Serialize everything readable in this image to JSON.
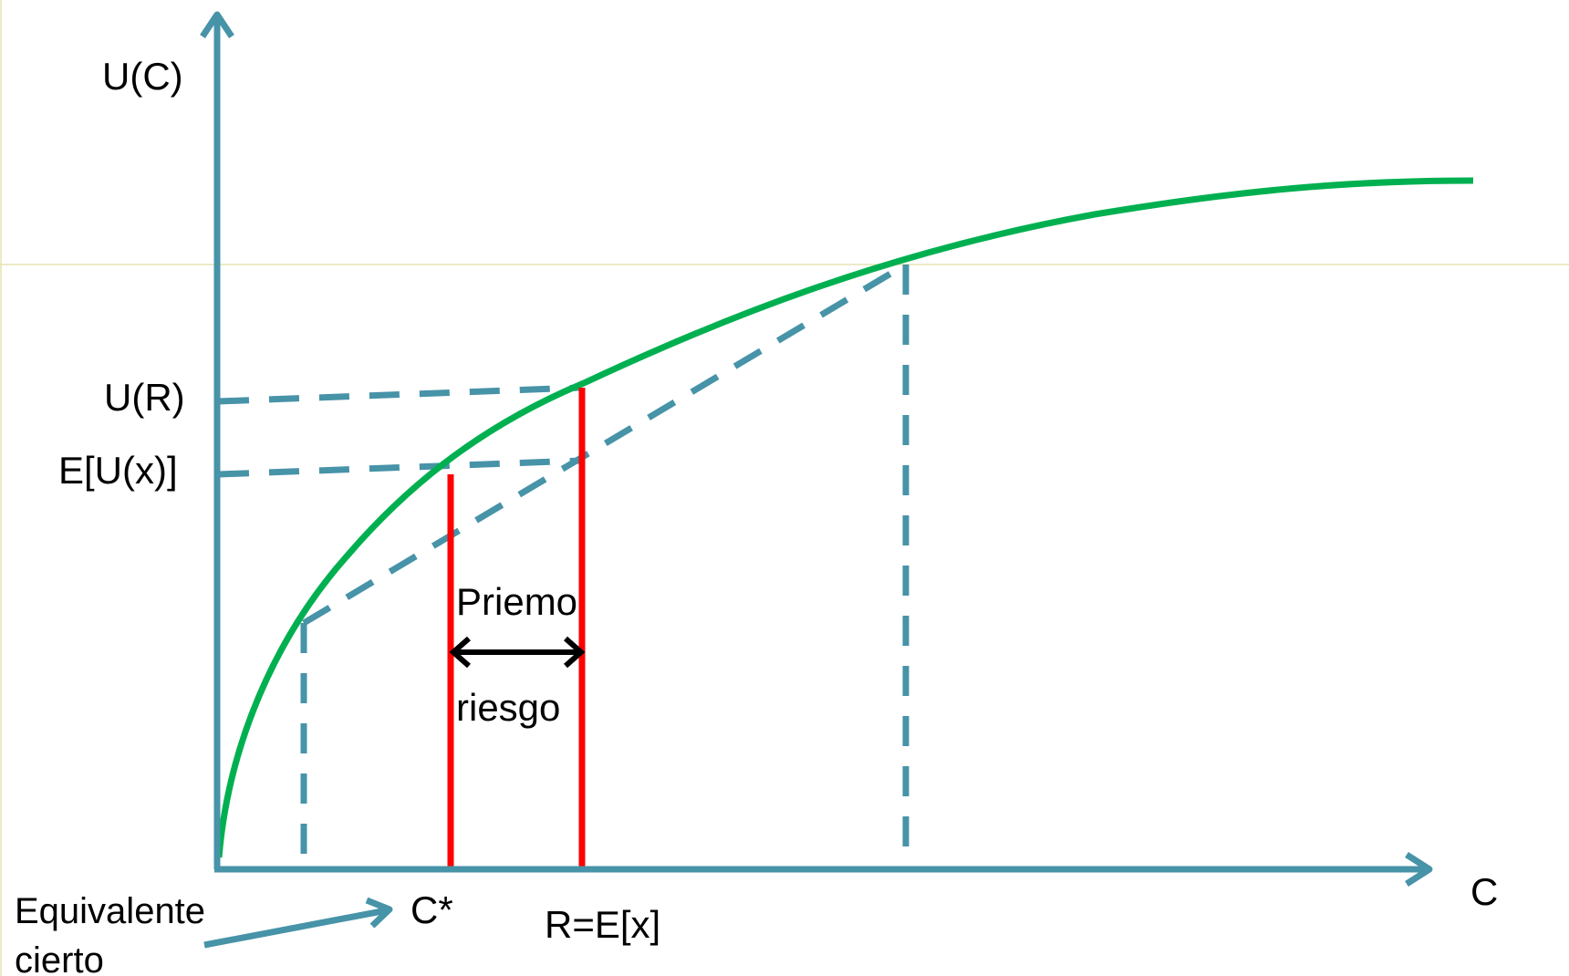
{
  "colors": {
    "axis": "#4793a8",
    "curve": "#00b050",
    "premium_lines": "#ff0000",
    "arrow": "#000000",
    "text": "#000000",
    "faint_guide": "#e6e3b3"
  },
  "labels": {
    "y_axis": "U(C)",
    "x_axis": "C",
    "u_r": "U(R)",
    "e_u": "E[U(x)]",
    "c_star": "C*",
    "r_eq": "R=E[x]",
    "premium_top": "Priemo",
    "premium_bottom": "riesgo",
    "certainty_line1": "Equivalente",
    "certainty_line2": "cierto"
  }
}
